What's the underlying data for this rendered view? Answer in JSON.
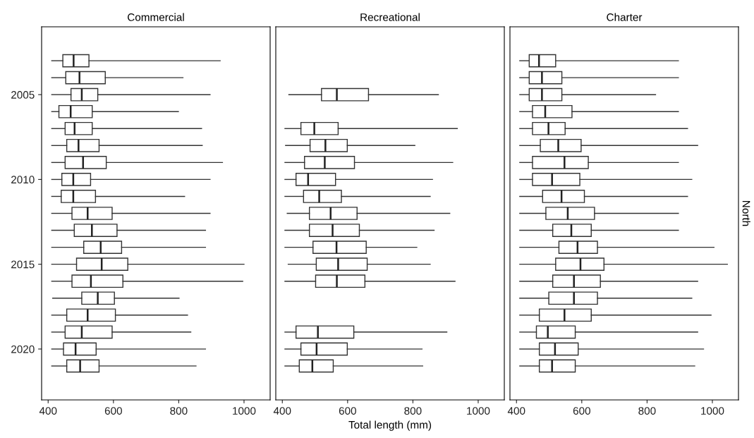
{
  "chart_data": [
    {
      "type": "box",
      "title": "Commercial",
      "orientation": "horizontal",
      "xlim": [
        380,
        1080
      ],
      "xticks": [
        400,
        600,
        800,
        1000
      ],
      "categories": [
        null,
        null,
        "2005",
        null,
        null,
        null,
        null,
        "2010",
        null,
        null,
        null,
        null,
        "2015",
        null,
        null,
        null,
        null,
        "2020",
        null
      ],
      "boxes": [
        {
          "low": 411,
          "q1": 445,
          "median": 478,
          "q3": 525,
          "high": 927
        },
        {
          "low": 411,
          "q1": 454,
          "median": 496,
          "q3": 575,
          "high": 813
        },
        {
          "low": 411,
          "q1": 470,
          "median": 503,
          "q3": 552,
          "high": 896
        },
        {
          "low": 411,
          "q1": 433,
          "median": 469,
          "q3": 535,
          "high": 799
        },
        {
          "low": 411,
          "q1": 452,
          "median": 481,
          "q3": 535,
          "high": 870
        },
        {
          "low": 411,
          "q1": 457,
          "median": 493,
          "q3": 556,
          "high": 872
        },
        {
          "low": 411,
          "q1": 452,
          "median": 507,
          "q3": 578,
          "high": 934
        },
        {
          "low": 411,
          "q1": 442,
          "median": 477,
          "q3": 530,
          "high": 896
        },
        {
          "low": 411,
          "q1": 440,
          "median": 477,
          "q3": 545,
          "high": 818
        },
        {
          "low": 411,
          "q1": 473,
          "median": 521,
          "q3": 596,
          "high": 896
        },
        {
          "low": 411,
          "q1": 480,
          "median": 534,
          "q3": 611,
          "high": 882
        },
        {
          "low": 411,
          "q1": 509,
          "median": 561,
          "q3": 625,
          "high": 882
        },
        {
          "low": 411,
          "q1": 487,
          "median": 564,
          "q3": 644,
          "high": 1000
        },
        {
          "low": 411,
          "q1": 473,
          "median": 531,
          "q3": 629,
          "high": 996
        },
        {
          "low": 414,
          "q1": 503,
          "median": 552,
          "q3": 603,
          "high": 801
        },
        {
          "low": 411,
          "q1": 457,
          "median": 521,
          "q3": 606,
          "high": 827
        },
        {
          "low": 411,
          "q1": 452,
          "median": 503,
          "q3": 596,
          "high": 837
        },
        {
          "low": 411,
          "q1": 447,
          "median": 484,
          "q3": 547,
          "high": 882
        },
        {
          "low": 411,
          "q1": 457,
          "median": 498,
          "q3": 556,
          "high": 853
        }
      ]
    },
    {
      "type": "box",
      "title": "Recreational",
      "orientation": "horizontal",
      "xlabel": "Total length (mm)",
      "tick_labels": "x",
      "xlim": [
        380,
        1080
      ],
      "xticks": [
        400,
        600,
        800,
        1000
      ],
      "categories": [
        null,
        null,
        "2005",
        null,
        null,
        null,
        null,
        "2010",
        null,
        null,
        null,
        null,
        "2015",
        null,
        null,
        null,
        null,
        "2020",
        null
      ],
      "boxes": [
        null,
        null,
        {
          "low": 420,
          "q1": 520,
          "median": 567,
          "q3": 664,
          "high": 878
        },
        null,
        {
          "low": 408,
          "q1": 457,
          "median": 498,
          "q3": 571,
          "high": 936
        },
        {
          "low": 410,
          "q1": 485,
          "median": 532,
          "q3": 599,
          "high": 806
        },
        {
          "low": 408,
          "q1": 468,
          "median": 530,
          "q3": 621,
          "high": 922
        },
        {
          "low": 408,
          "q1": 442,
          "median": 479,
          "q3": 563,
          "high": 860
        },
        {
          "low": 408,
          "q1": 465,
          "median": 513,
          "q3": 581,
          "high": 853
        },
        {
          "low": 415,
          "q1": 483,
          "median": 548,
          "q3": 629,
          "high": 913
        },
        {
          "low": 408,
          "q1": 483,
          "median": 554,
          "q3": 636,
          "high": 865
        },
        {
          "low": 408,
          "q1": 494,
          "median": 566,
          "q3": 657,
          "high": 812
        },
        {
          "low": 418,
          "q1": 504,
          "median": 571,
          "q3": 660,
          "high": 853
        },
        {
          "low": 408,
          "q1": 502,
          "median": 567,
          "q3": 653,
          "high": 929
        },
        null,
        null,
        {
          "low": 408,
          "q1": 442,
          "median": 509,
          "q3": 619,
          "high": 904
        },
        {
          "low": 408,
          "q1": 457,
          "median": 505,
          "q3": 599,
          "high": 828
        },
        {
          "low": 408,
          "q1": 452,
          "median": 492,
          "q3": 556,
          "high": 830
        }
      ]
    },
    {
      "type": "box",
      "title": "Charter",
      "orientation": "horizontal",
      "tick_labels": "x",
      "annotations": [
        "North"
      ],
      "xlim": [
        380,
        1080
      ],
      "xticks": [
        400,
        600,
        800,
        1000
      ],
      "categories": [
        null,
        null,
        "2005",
        null,
        null,
        null,
        null,
        "2010",
        null,
        null,
        null,
        null,
        "2015",
        null,
        null,
        null,
        null,
        "2020",
        null
      ],
      "boxes": [
        {
          "low": 410,
          "q1": 439,
          "median": 469,
          "q3": 520,
          "high": 896
        },
        {
          "low": 410,
          "q1": 439,
          "median": 478,
          "q3": 539,
          "high": 896
        },
        {
          "low": 410,
          "q1": 439,
          "median": 478,
          "q3": 539,
          "high": 826
        },
        {
          "low": 410,
          "q1": 449,
          "median": 488,
          "q3": 570,
          "high": 896
        },
        {
          "low": 410,
          "q1": 449,
          "median": 498,
          "q3": 549,
          "high": 924
        },
        {
          "low": 410,
          "q1": 473,
          "median": 528,
          "q3": 598,
          "high": 955
        },
        {
          "low": 410,
          "q1": 449,
          "median": 547,
          "q3": 620,
          "high": 896
        },
        {
          "low": 410,
          "q1": 449,
          "median": 509,
          "q3": 594,
          "high": 937
        },
        {
          "low": 410,
          "q1": 480,
          "median": 538,
          "q3": 608,
          "high": 924
        },
        {
          "low": 410,
          "q1": 490,
          "median": 557,
          "q3": 639,
          "high": 896
        },
        {
          "low": 410,
          "q1": 511,
          "median": 568,
          "q3": 629,
          "high": 896
        },
        {
          "low": 410,
          "q1": 530,
          "median": 587,
          "q3": 648,
          "high": 1005
        },
        {
          "low": 410,
          "q1": 520,
          "median": 596,
          "q3": 668,
          "high": 1046
        },
        {
          "low": 410,
          "q1": 511,
          "median": 576,
          "q3": 657,
          "high": 955
        },
        {
          "low": 410,
          "q1": 499,
          "median": 576,
          "q3": 648,
          "high": 937
        },
        {
          "low": 410,
          "q1": 470,
          "median": 547,
          "q3": 629,
          "high": 996
        },
        {
          "low": 410,
          "q1": 461,
          "median": 496,
          "q3": 580,
          "high": 955
        },
        {
          "low": 410,
          "q1": 470,
          "median": 518,
          "q3": 589,
          "high": 973
        },
        {
          "low": 410,
          "q1": 470,
          "median": 509,
          "q3": 580,
          "high": 946
        }
      ]
    }
  ]
}
